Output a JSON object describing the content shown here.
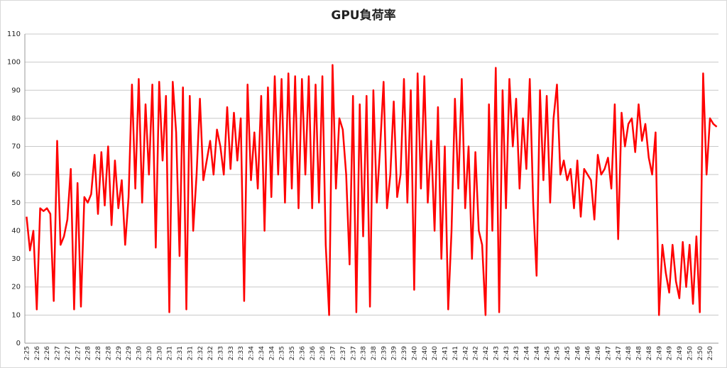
{
  "chart_data": {
    "type": "line",
    "title": "GPU負荷率",
    "color": "#ff0000",
    "grid": true,
    "ylim": [
      0,
      110
    ],
    "yticks": [
      0,
      10,
      20,
      30,
      40,
      50,
      60,
      70,
      80,
      90,
      100,
      110
    ],
    "categories": [
      "2:25",
      null,
      null,
      "2:26",
      null,
      null,
      "2:26",
      null,
      null,
      "2:27",
      null,
      null,
      "2:27",
      null,
      null,
      "2:27",
      null,
      null,
      "2:28",
      null,
      null,
      "2:28",
      null,
      null,
      "2:28",
      null,
      null,
      "2:29",
      null,
      null,
      "2:29",
      null,
      null,
      "2:30",
      null,
      null,
      "2:30",
      null,
      null,
      "2:30",
      null,
      null,
      "2:31",
      null,
      null,
      "2:31",
      null,
      null,
      "2:31",
      null,
      null,
      "2:32",
      null,
      null,
      "2:32",
      null,
      null,
      "2:33",
      null,
      null,
      "2:33",
      null,
      null,
      "2:33",
      null,
      null,
      "2:34",
      null,
      null,
      "2:34",
      null,
      null,
      "2:34",
      null,
      null,
      "2:35",
      null,
      null,
      "2:35",
      null,
      null,
      "2:36",
      null,
      null,
      "2:36",
      null,
      null,
      "2:36",
      null,
      null,
      "2:37",
      null,
      null,
      "2:37",
      null,
      null,
      "2:37",
      null,
      null,
      "2:38",
      null,
      null,
      "2:38",
      null,
      null,
      "2:39",
      null,
      null,
      "2:39",
      null,
      null,
      "2:39",
      null,
      null,
      "2:40",
      null,
      null,
      "2:40",
      null,
      null,
      "2:40",
      null,
      null,
      "2:41",
      null,
      null,
      "2:41",
      null,
      null,
      "2:42",
      null,
      null,
      "2:42",
      null,
      null,
      "2:42",
      null,
      null,
      "2:43",
      null,
      null,
      "2:43",
      null,
      null,
      "2:43",
      null,
      null,
      "2:44",
      null,
      null,
      "2:44",
      null,
      null,
      "2:45",
      null,
      null,
      "2:45",
      null,
      null,
      "2:45",
      null,
      null,
      "2:46",
      null,
      null,
      "2:46",
      null,
      null,
      "2:46",
      null,
      null,
      "2:47",
      null,
      null,
      "2:47",
      null,
      null,
      "2:48",
      null,
      null,
      "2:48",
      null,
      null,
      "2:48",
      null,
      null,
      "2:49",
      null,
      null,
      "2:49",
      null,
      null,
      "2:49",
      null,
      null,
      "2:50",
      null,
      null,
      "2:50",
      null,
      null,
      "2:50",
      null,
      null
    ],
    "values": [
      45,
      33,
      40,
      12,
      48,
      47,
      48,
      46,
      15,
      72,
      35,
      38,
      44,
      62,
      12,
      57,
      13,
      52,
      50,
      53,
      67,
      46,
      68,
      49,
      70,
      42,
      65,
      48,
      58,
      35,
      52,
      92,
      55,
      94,
      50,
      85,
      60,
      92,
      34,
      93,
      65,
      88,
      11,
      93,
      75,
      31,
      91,
      12,
      88,
      40,
      60,
      87,
      58,
      65,
      72,
      60,
      76,
      70,
      60,
      84,
      62,
      82,
      65,
      80,
      15,
      92,
      58,
      75,
      55,
      88,
      40,
      91,
      52,
      95,
      60,
      94,
      50,
      96,
      55,
      95,
      48,
      94,
      60,
      95,
      48,
      92,
      50,
      95,
      35,
      10,
      99,
      55,
      80,
      76,
      60,
      28,
      88,
      11,
      85,
      38,
      88,
      13,
      90,
      50,
      70,
      93,
      48,
      60,
      86,
      52,
      60,
      94,
      50,
      90,
      19,
      96,
      55,
      95,
      50,
      72,
      40,
      84,
      30,
      70,
      12,
      40,
      87,
      55,
      94,
      48,
      70,
      30,
      68,
      40,
      35,
      10,
      85,
      40,
      98,
      11,
      90,
      48,
      94,
      70,
      87,
      55,
      80,
      62,
      94,
      50,
      24,
      90,
      58,
      88,
      50,
      80,
      92,
      60,
      65,
      58,
      62,
      48,
      65,
      45,
      62,
      60,
      58,
      44,
      67,
      60,
      62,
      66,
      55,
      85,
      37,
      82,
      70,
      78,
      80,
      68,
      85,
      72,
      78,
      66,
      60,
      75,
      10,
      35,
      25,
      18,
      35,
      22,
      16,
      36,
      20,
      35,
      14,
      38,
      11,
      96,
      60,
      80,
      78,
      77
    ]
  }
}
